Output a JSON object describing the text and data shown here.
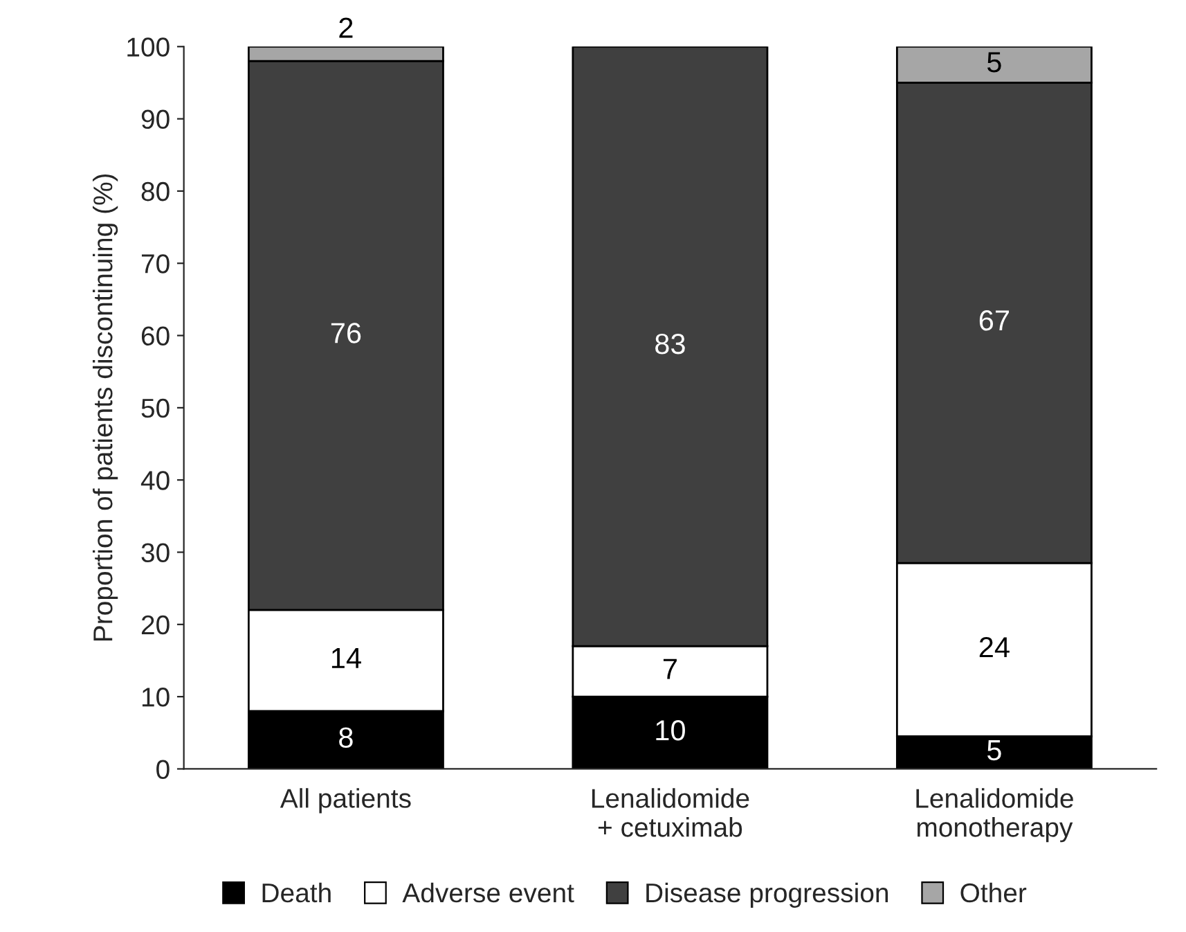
{
  "chart_data": {
    "type": "bar",
    "stacked": true,
    "ylabel": "Proportion of patients discontinuing (%)",
    "categories": [
      "All patients",
      "Lenalidomide\n+ cetuximab",
      "Lenalidomide\nmonotherapy"
    ],
    "series": [
      {
        "name": "Death",
        "color": "#000000",
        "values": [
          8,
          10,
          4.5
        ],
        "value_labels": [
          "8",
          "10",
          "5"
        ]
      },
      {
        "name": "Adverse event",
        "color": "#ffffff",
        "values": [
          14,
          7,
          24
        ],
        "value_labels": [
          "14",
          "7",
          "24"
        ]
      },
      {
        "name": "Disease progression",
        "color": "#404040",
        "values": [
          76,
          83,
          66.5
        ],
        "value_labels": [
          "76",
          "83",
          "67"
        ]
      },
      {
        "name": "Other",
        "color": "#a6a6a6",
        "values": [
          2,
          null,
          5
        ],
        "value_labels": [
          "2",
          null,
          "5"
        ]
      }
    ],
    "ylim": [
      0,
      100
    ],
    "yticks": [
      0,
      10,
      20,
      30,
      40,
      50,
      60,
      70,
      80,
      90,
      100
    ],
    "legend": "bottom",
    "marker": "square",
    "grid": false
  }
}
